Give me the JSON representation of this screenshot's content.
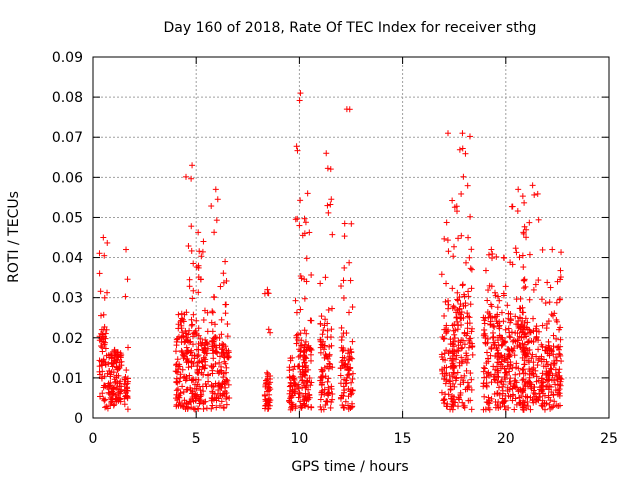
{
  "chart_data": {
    "type": "scatter",
    "title": "Day 160 of 2018, Rate Of TEC Index for receiver sthg",
    "xlabel": "GPS time / hours",
    "ylabel": "ROTI / TECUs",
    "xlim": [
      0,
      25
    ],
    "ylim": [
      0,
      0.09
    ],
    "x_ticks": [
      0,
      5,
      10,
      15,
      20,
      25
    ],
    "x_tick_labels": [
      "0",
      "5",
      "10",
      "15",
      "20",
      "25"
    ],
    "y_ticks": [
      0,
      0.01,
      0.02,
      0.03,
      0.04,
      0.05,
      0.06,
      0.07,
      0.08,
      0.09
    ],
    "y_tick_labels": [
      "0",
      "0.01",
      "0.02",
      "0.03",
      "0.04",
      "0.05",
      "0.06",
      "0.07",
      "0.08",
      "0.09"
    ],
    "grid": true,
    "marker": "+",
    "color": "#ff0000",
    "series": [
      {
        "name": "ROTI",
        "clusters": [
          {
            "x_start": 0.3,
            "x_end": 0.7,
            "y_dense_max": 0.022,
            "peak": 0.045
          },
          {
            "x_start": 0.7,
            "x_end": 1.4,
            "y_dense_max": 0.015,
            "peak": 0.017
          },
          {
            "x_start": 1.5,
            "x_end": 1.7,
            "y_dense_max": 0.01,
            "peak": 0.042
          },
          {
            "x_start": 4.0,
            "x_end": 4.6,
            "y_dense_max": 0.02,
            "peak": 0.026
          },
          {
            "x_start": 4.5,
            "x_end": 5.1,
            "y_dense_max": 0.022,
            "peak": 0.063
          },
          {
            "x_start": 5.1,
            "x_end": 5.6,
            "y_dense_max": 0.02,
            "peak": 0.044
          },
          {
            "x_start": 5.7,
            "x_end": 6.2,
            "y_dense_max": 0.02,
            "peak": 0.057
          },
          {
            "x_start": 6.2,
            "x_end": 6.6,
            "y_dense_max": 0.018,
            "peak": 0.039
          },
          {
            "x_start": 8.3,
            "x_end": 8.6,
            "y_dense_max": 0.01,
            "peak": 0.032
          },
          {
            "x_start": 9.5,
            "x_end": 9.8,
            "y_dense_max": 0.01,
            "peak": 0.015
          },
          {
            "x_start": 9.8,
            "x_end": 10.3,
            "y_dense_max": 0.022,
            "peak": 0.081
          },
          {
            "x_start": 10.2,
            "x_end": 10.6,
            "y_dense_max": 0.018,
            "peak": 0.056
          },
          {
            "x_start": 11.0,
            "x_end": 11.6,
            "y_dense_max": 0.022,
            "peak": 0.066
          },
          {
            "x_start": 12.0,
            "x_end": 12.6,
            "y_dense_max": 0.018,
            "peak": 0.077
          },
          {
            "x_start": 16.9,
            "x_end": 17.5,
            "y_dense_max": 0.022,
            "peak": 0.071
          },
          {
            "x_start": 17.4,
            "x_end": 18.4,
            "y_dense_max": 0.03,
            "peak": 0.071
          },
          {
            "x_start": 18.9,
            "x_end": 19.7,
            "y_dense_max": 0.025,
            "peak": 0.042
          },
          {
            "x_start": 19.6,
            "x_end": 20.2,
            "y_dense_max": 0.02,
            "peak": 0.04
          },
          {
            "x_start": 20.2,
            "x_end": 21.0,
            "y_dense_max": 0.025,
            "peak": 0.057
          },
          {
            "x_start": 20.8,
            "x_end": 21.8,
            "y_dense_max": 0.022,
            "peak": 0.058
          },
          {
            "x_start": 21.8,
            "x_end": 22.7,
            "y_dense_max": 0.018,
            "peak": 0.042
          }
        ]
      }
    ]
  }
}
